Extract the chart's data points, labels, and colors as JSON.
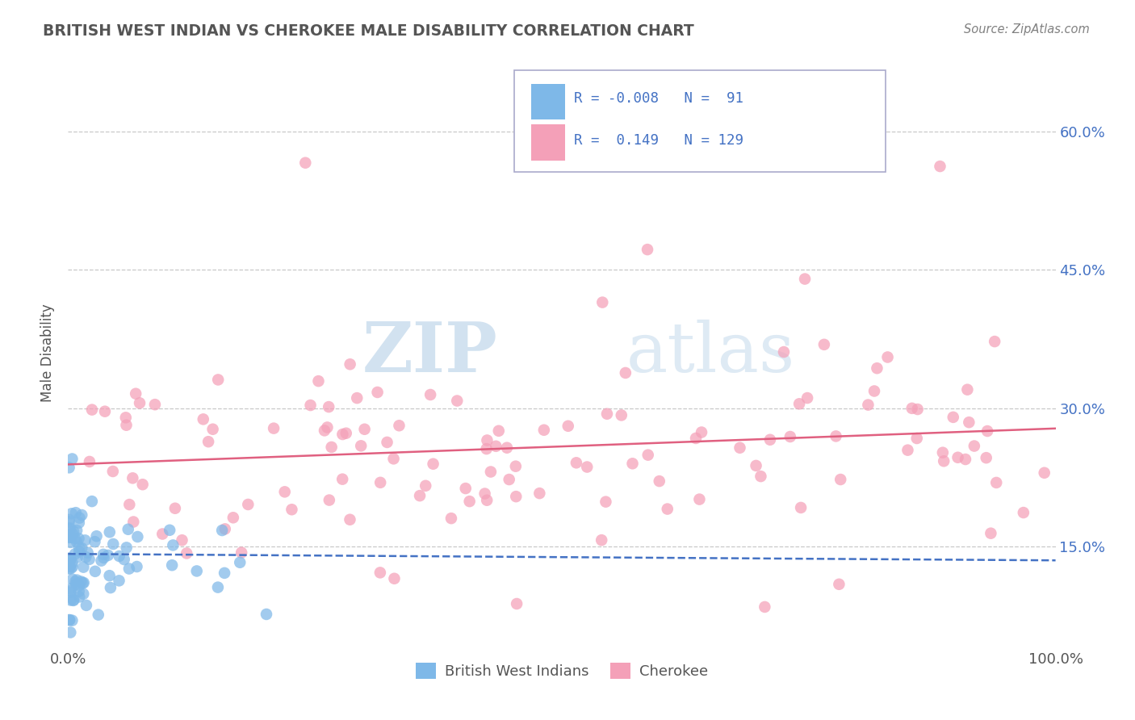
{
  "title": "BRITISH WEST INDIAN VS CHEROKEE MALE DISABILITY CORRELATION CHART",
  "source_text": "Source: ZipAtlas.com",
  "ylabel": "Male Disability",
  "xlim": [
    0.0,
    1.0
  ],
  "ylim": [
    0.04,
    0.68
  ],
  "yticks": [
    0.15,
    0.3,
    0.45,
    0.6
  ],
  "ytick_labels": [
    "15.0%",
    "30.0%",
    "45.0%",
    "60.0%"
  ],
  "xticks": [
    0.0,
    1.0
  ],
  "xtick_labels": [
    "0.0%",
    "100.0%"
  ],
  "series1_color": "#7EB8E8",
  "series2_color": "#F4A0B8",
  "line1_color": "#4472C4",
  "line2_color": "#E06080",
  "R1": -0.008,
  "N1": 91,
  "R2": 0.149,
  "N2": 129,
  "legend_label1": "British West Indians",
  "legend_label2": "Cherokee",
  "watermark_zip": "ZIP",
  "watermark_atlas": "atlas",
  "background_color": "#ffffff",
  "grid_color": "#c8c8c8",
  "title_color": "#555555",
  "axis_label_color": "#555555",
  "tick_label_color_right": "#4472C4",
  "legend_text_color": "#4472C4",
  "legend_rvalue_color": "#4472C4",
  "seed1": 42,
  "seed2": 77,
  "line1_start_y": 0.142,
  "line1_end_y": 0.135,
  "line2_start_y": 0.239,
  "line2_end_y": 0.278
}
